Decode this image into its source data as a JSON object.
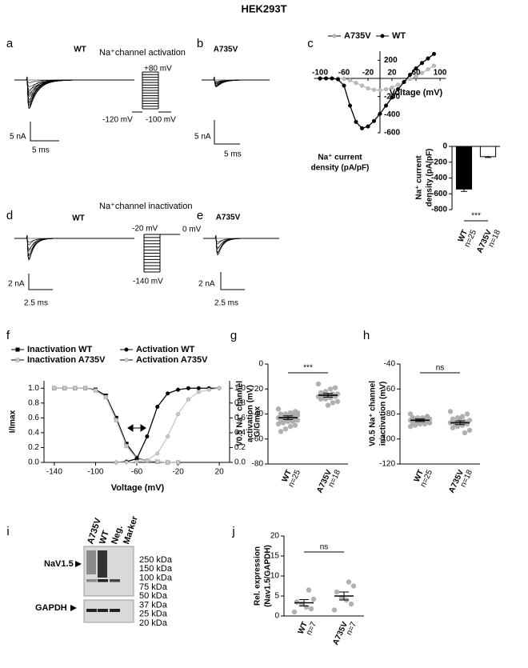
{
  "title": "HEK293T",
  "panel_labels": [
    "a",
    "b",
    "c",
    "d",
    "e",
    "f",
    "g",
    "h",
    "i",
    "j"
  ],
  "traces": {
    "a": {
      "genotype": "WT",
      "protocol": "Na⁺channel activation",
      "voltages": [
        "+80 mV",
        "-120 mV",
        "-100 mV"
      ],
      "scale": [
        "5 nA",
        "5 ms"
      ]
    },
    "b": {
      "genotype": "A735V",
      "scale": [
        "5 nA",
        "5 ms"
      ]
    },
    "d": {
      "genotype": "WT",
      "protocol": "Na⁺channel inactivation",
      "voltages": [
        "-20 mV",
        "0 mV",
        "-140 mV"
      ],
      "scale": [
        "2 nA",
        "2.5 ms"
      ]
    },
    "e": {
      "genotype": "A735V",
      "scale": [
        "2 nA",
        "2.5 ms"
      ]
    }
  },
  "chart_data": [
    {
      "type": "line",
      "axes_cross_origin": true,
      "legend_position": "top",
      "xlabel": "Voltage (mV)",
      "ylabel": [
        "Na⁺ current",
        "density (pA/pF)"
      ],
      "xlim": [
        -110,
        110
      ],
      "xticks": [
        -100,
        -60,
        -20,
        20,
        60,
        100
      ],
      "ylim": [
        -600,
        300
      ],
      "yticks": [
        -600,
        -400,
        -200,
        200
      ],
      "series": [
        {
          "name": "A735V",
          "color": "#bdbdbd",
          "marker": "circle",
          "x": [
            -100,
            -90,
            -80,
            -70,
            -60,
            -50,
            -40,
            -30,
            -20,
            -10,
            0,
            10,
            20,
            30,
            40,
            50,
            60,
            70,
            80,
            90
          ],
          "values": [
            0,
            0,
            0,
            0,
            -5,
            -20,
            -50,
            -80,
            -110,
            -125,
            -130,
            -120,
            -100,
            -70,
            -40,
            -5,
            20,
            60,
            100,
            140
          ]
        },
        {
          "name": "WT",
          "color": "#000000",
          "marker": "circle",
          "x": [
            -100,
            -90,
            -80,
            -70,
            -60,
            -50,
            -40,
            -30,
            -20,
            -10,
            0,
            10,
            20,
            30,
            40,
            50,
            60,
            70,
            80,
            90
          ],
          "values": [
            0,
            0,
            0,
            -10,
            -80,
            -300,
            -480,
            -550,
            -530,
            -470,
            -390,
            -300,
            -210,
            -120,
            -40,
            40,
            110,
            170,
            220,
            270
          ]
        }
      ]
    },
    {
      "type": "bar",
      "categories": [
        "WT",
        "A735V"
      ],
      "category_notes": [
        "n=25",
        "n=18"
      ],
      "values": [
        -540,
        -130
      ],
      "errors": [
        30,
        10
      ],
      "colors": [
        "#000000",
        "#ffffff"
      ],
      "ylim": [
        -800,
        0
      ],
      "yticks": [
        0,
        -200,
        -400,
        -600,
        -800
      ],
      "ylabel": [
        "Na⁺ current",
        "density (pA/pF)"
      ],
      "significance": "***"
    },
    {
      "type": "line",
      "legend_position": "top",
      "xlabel": "Voltage (mV)",
      "ylabel": "I/Imax",
      "y2label": "G/Gmax",
      "xlim": [
        -150,
        30
      ],
      "xticks": [
        -140,
        -100,
        -60,
        -20,
        20
      ],
      "ylim": [
        0,
        1.1
      ],
      "yticks": [
        {
          "value": 0,
          "label": "0.0"
        },
        {
          "value": 0.2,
          "label": "0.2"
        },
        {
          "value": 0.4,
          "label": "0.4"
        },
        {
          "value": 0.6,
          "label": "0.6"
        },
        {
          "value": 0.8,
          "label": "0.8"
        },
        {
          "value": 1,
          "label": "1.0"
        }
      ],
      "y2lim": [
        0,
        1.1
      ],
      "y2ticks": [
        {
          "value": 0,
          "label": "0.0"
        },
        {
          "value": 0.2,
          "label": "0.2"
        },
        {
          "value": 0.4,
          "label": "0.4"
        },
        {
          "value": 0.6,
          "label": "0.6"
        },
        {
          "value": 0.8,
          "label": "0.8"
        },
        {
          "value": 1,
          "label": "1.0"
        }
      ],
      "series": [
        {
          "name": "Inactivation WT",
          "color": "#000000",
          "marker": "square",
          "x": [
            -140,
            -130,
            -120,
            -110,
            -100,
            -90,
            -80,
            -70,
            -60,
            -50,
            -40,
            -30,
            -20
          ],
          "values": [
            1,
            1,
            1,
            1,
            0.98,
            0.9,
            0.6,
            0.25,
            0.06,
            0.02,
            0.01,
            0,
            0
          ]
        },
        {
          "name": "Inactivation A735V",
          "color": "#c8c8c8",
          "marker": "square",
          "x": [
            -140,
            -130,
            -120,
            -110,
            -100,
            -90,
            -80,
            -70,
            -60,
            -50,
            -40,
            -30,
            -20
          ],
          "values": [
            1,
            1,
            1,
            1,
            0.97,
            0.88,
            0.57,
            0.22,
            0.05,
            0.02,
            0.01,
            0,
            0
          ]
        },
        {
          "name": "Activation WT",
          "color": "#000000",
          "marker": "circle",
          "axis": "y2",
          "x": [
            -80,
            -70,
            -60,
            -50,
            -40,
            -30,
            -20,
            -10,
            0,
            10,
            20
          ],
          "values": [
            0,
            0.01,
            0.05,
            0.35,
            0.75,
            0.93,
            0.98,
            1,
            1,
            1,
            1
          ]
        },
        {
          "name": "Activation A735V",
          "color": "#c8c8c8",
          "marker": "circle",
          "axis": "y2",
          "x": [
            -80,
            -70,
            -60,
            -50,
            -40,
            -30,
            -20,
            -10,
            0,
            10,
            20
          ],
          "values": [
            0,
            0,
            0.01,
            0.03,
            0.12,
            0.35,
            0.65,
            0.85,
            0.95,
            0.98,
            1
          ]
        }
      ]
    },
    {
      "type": "dot",
      "categories": [
        "WT",
        "A735V"
      ],
      "category_notes": [
        "n=25",
        "n=18"
      ],
      "color": "#a8a8a8",
      "points": [
        [
          -36,
          -38,
          -39,
          -40,
          -40,
          -41,
          -42,
          -42,
          -43,
          -43,
          -44,
          -44,
          -44,
          -45,
          -45,
          -46,
          -46,
          -47,
          -48,
          -49,
          -50,
          -52,
          -54,
          -39,
          -41
        ],
        [
          -16,
          -19,
          -20,
          -22,
          -23,
          -24,
          -24,
          -25,
          -25,
          -26,
          -26,
          -27,
          -28,
          -28,
          -30,
          -31,
          -33,
          -24
        ]
      ],
      "means": [
        -43,
        -25
      ],
      "errors": [
        1.5,
        1.5
      ],
      "ylim": [
        -80,
        0
      ],
      "yticks": [
        0,
        -20,
        -40,
        -60,
        -80
      ],
      "ylabel": [
        "V0.5 Na⁺ channel",
        "activation (mV)"
      ],
      "significance": "***"
    },
    {
      "type": "dot",
      "categories": [
        "WT",
        "A735V"
      ],
      "category_notes": [
        "n=25",
        "n=18"
      ],
      "color": "#a8a8a8",
      "points": [
        [
          -80,
          -82,
          -83,
          -83,
          -84,
          -84,
          -85,
          -85,
          -85,
          -85,
          -86,
          -86,
          -86,
          -87,
          -87,
          -88,
          -88,
          -89,
          -90,
          -82,
          -84,
          -86,
          -83,
          -87,
          -85
        ],
        [
          -78,
          -80,
          -82,
          -83,
          -84,
          -85,
          -86,
          -86,
          -87,
          -87,
          -88,
          -89,
          -90,
          -91,
          -93,
          -95,
          -84,
          -88
        ]
      ],
      "means": [
        -85,
        -87
      ],
      "errors": [
        1,
        1.5
      ],
      "ylim": [
        -120,
        -40
      ],
      "yticks": [
        -40,
        -60,
        -80,
        -100,
        -120
      ],
      "ylabel": [
        "V0.5 Na⁺ channel",
        "inactivation (mV)"
      ],
      "significance": "ns"
    },
    {
      "type": "dot",
      "categories": [
        "WT",
        "A735V"
      ],
      "category_notes": [
        "n=7",
        "n=7"
      ],
      "color": "#a8a8a8",
      "points": [
        [
          1,
          1.8,
          2.2,
          3,
          3.5,
          4.2,
          6.5
        ],
        [
          1.5,
          3,
          4,
          4.5,
          6,
          7.5,
          8.5
        ]
      ],
      "means": [
        3.3,
        5
      ],
      "errors": [
        0.8,
        1
      ],
      "ylim": [
        0,
        20
      ],
      "yticks": [
        0,
        5,
        10,
        15,
        20
      ],
      "ylabel": [
        "Rel. expression",
        "(Nav1.5/GAPDH)"
      ],
      "significance": "ns"
    }
  ],
  "blot": {
    "lanes": [
      "A735V",
      "WT",
      "Neg.",
      "Marker"
    ],
    "rows": [
      "NaV1.5",
      "GAPDH"
    ],
    "markers": [
      "250 kDa",
      "150 kDa",
      "100 kDa",
      "75 kDa",
      "50 kDa",
      "37 kDa",
      "25 kDa",
      "20 kDa"
    ]
  }
}
